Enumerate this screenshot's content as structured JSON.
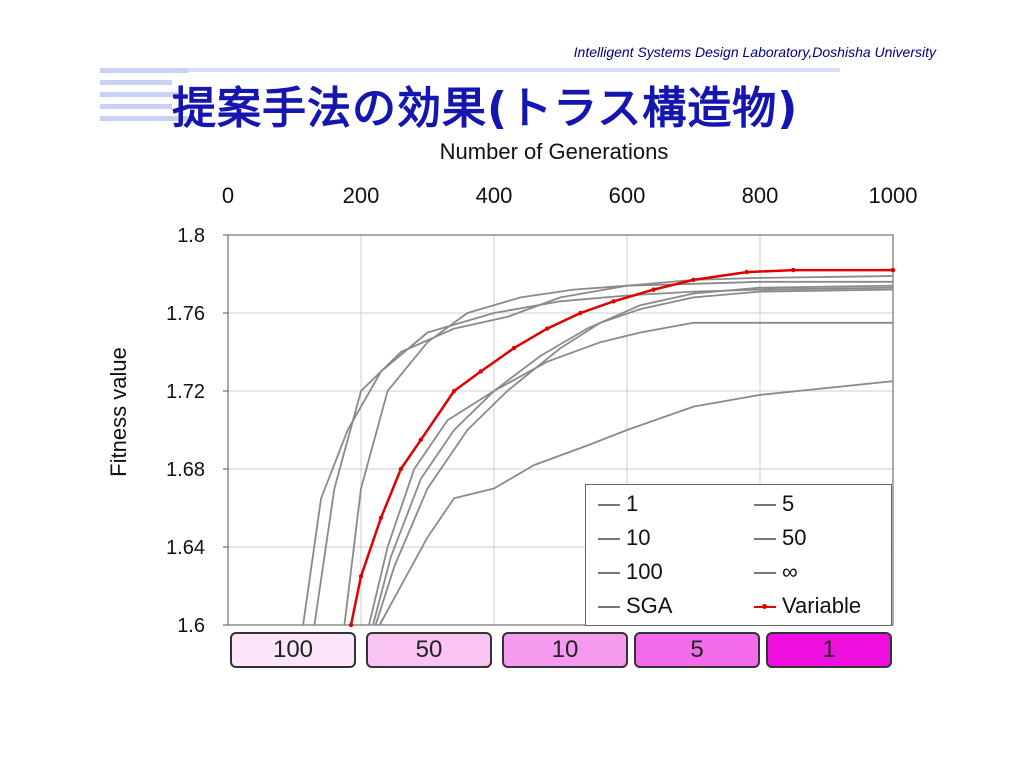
{
  "header": {
    "credit": "Intelligent Systems Design Laboratory,Doshisha University",
    "title": "提案手法の効果(トラス構造物)"
  },
  "chart_data": {
    "type": "line",
    "title": "",
    "xlabel": "Number of Generations",
    "ylabel": "Fitness value",
    "xlim": [
      0,
      1000
    ],
    "ylim": [
      1.6,
      1.8
    ],
    "x_ticks": [
      "0",
      "200",
      "400",
      "600",
      "800",
      "1000"
    ],
    "y_ticks": [
      "1.8",
      "1.76",
      "1.72",
      "1.68",
      "1.64",
      "1.6"
    ],
    "grid": true,
    "legend_position": "bottom-right",
    "series": [
      {
        "name": "1",
        "color": "#8a8a8a",
        "x": [
          113,
          140,
          180,
          230,
          300,
          400,
          500,
          600,
          700,
          800,
          1000
        ],
        "y": [
          1.6,
          1.665,
          1.7,
          1.73,
          1.75,
          1.76,
          1.766,
          1.769,
          1.771,
          1.772,
          1.773
        ]
      },
      {
        "name": "5",
        "color": "#8a8a8a",
        "x": [
          130,
          160,
          200,
          260,
          340,
          420,
          500,
          600,
          700,
          800,
          1000
        ],
        "y": [
          1.6,
          1.67,
          1.72,
          1.74,
          1.752,
          1.758,
          1.768,
          1.774,
          1.777,
          1.778,
          1.779
        ]
      },
      {
        "name": "10",
        "color": "#8a8a8a",
        "x": [
          175,
          200,
          240,
          300,
          360,
          440,
          520,
          600,
          700,
          800,
          1000
        ],
        "y": [
          1.6,
          1.67,
          1.72,
          1.745,
          1.76,
          1.768,
          1.772,
          1.774,
          1.775,
          1.776,
          1.776
        ]
      },
      {
        "name": "50",
        "color": "#8a8a8a",
        "x": [
          212,
          240,
          280,
          330,
          400,
          480,
          560,
          620,
          700,
          800,
          1000
        ],
        "y": [
          1.6,
          1.64,
          1.68,
          1.705,
          1.72,
          1.735,
          1.745,
          1.75,
          1.755,
          1.755,
          1.755
        ]
      },
      {
        "name": "100",
        "color": "#8a8a8a",
        "x": [
          222,
          250,
          300,
          360,
          420,
          500,
          560,
          620,
          700,
          800,
          1000
        ],
        "y": [
          1.6,
          1.63,
          1.67,
          1.7,
          1.72,
          1.742,
          1.755,
          1.762,
          1.768,
          1.771,
          1.772
        ]
      },
      {
        "name": "∞",
        "color": "#8a8a8a",
        "x": [
          218,
          245,
          290,
          340,
          400,
          470,
          540,
          620,
          700,
          800,
          1000
        ],
        "y": [
          1.6,
          1.635,
          1.675,
          1.7,
          1.72,
          1.738,
          1.752,
          1.764,
          1.77,
          1.773,
          1.774
        ]
      },
      {
        "name": "SGA",
        "color": "#8a8a8a",
        "x": [
          228,
          260,
          300,
          340,
          400,
          460,
          540,
          600,
          700,
          800,
          1000
        ],
        "y": [
          1.6,
          1.62,
          1.645,
          1.665,
          1.67,
          1.682,
          1.692,
          1.7,
          1.712,
          1.718,
          1.725
        ]
      },
      {
        "name": "Variable",
        "color": "#e00000",
        "x": [
          185,
          200,
          230,
          260,
          290,
          340,
          380,
          430,
          480,
          530,
          580,
          640,
          700,
          780,
          850,
          1000
        ],
        "y": [
          1.6,
          1.625,
          1.655,
          1.68,
          1.695,
          1.72,
          1.73,
          1.742,
          1.752,
          1.76,
          1.766,
          1.772,
          1.777,
          1.781,
          1.782,
          1.782
        ]
      }
    ]
  },
  "stages": [
    {
      "label": "100",
      "color": "#fde6fb"
    },
    {
      "label": "50",
      "color": "#f9c3f4"
    },
    {
      "label": "10",
      "color": "#f59aef"
    },
    {
      "label": "5",
      "color": "#f36aeb"
    },
    {
      "label": "1",
      "color": "#ef10e0"
    }
  ]
}
